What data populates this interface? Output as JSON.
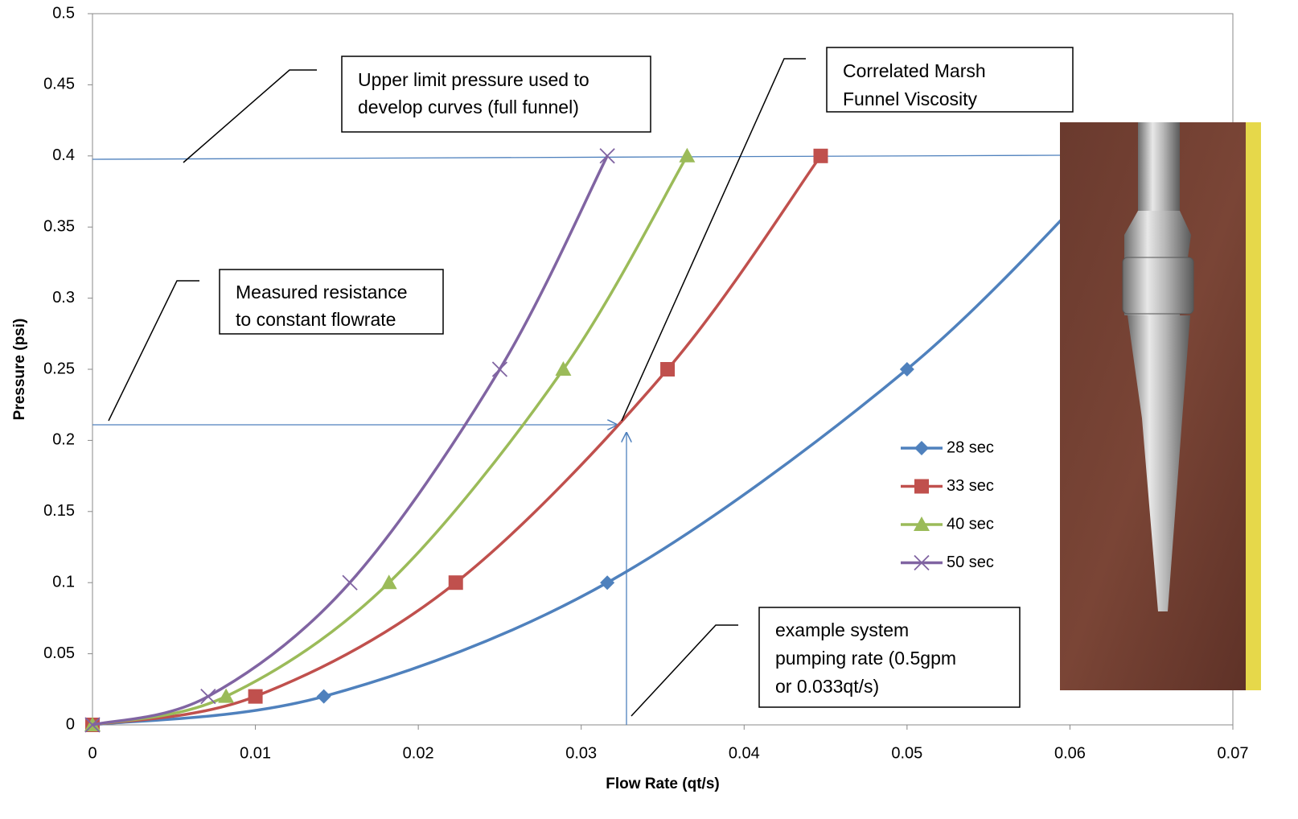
{
  "chart_data": {
    "type": "scatter",
    "xlabel": "Flow Rate (qt/s)",
    "ylabel": "Pressure (psi)",
    "xlim": [
      0,
      0.07
    ],
    "ylim": [
      0,
      0.5
    ],
    "xticks": [
      0,
      0.01,
      0.02,
      0.03,
      0.04,
      0.05,
      0.06,
      0.07
    ],
    "yticks": [
      0,
      0.05,
      0.1,
      0.15,
      0.2,
      0.25,
      0.3,
      0.35,
      0.4,
      0.45,
      0.5
    ],
    "series": [
      {
        "name": "28 sec",
        "color": "#4f81bd",
        "marker": "diamond",
        "x": [
          0,
          0.0142,
          0.0316,
          0.05,
          0.0632
        ],
        "values": [
          0,
          0.02,
          0.1,
          0.25,
          0.4
        ]
      },
      {
        "name": "33 sec",
        "color": "#c0504d",
        "marker": "square",
        "x": [
          0,
          0.01,
          0.0223,
          0.0353,
          0.0447
        ],
        "values": [
          0,
          0.02,
          0.1,
          0.25,
          0.4
        ]
      },
      {
        "name": "40 sec",
        "color": "#9bbb59",
        "marker": "triangle",
        "x": [
          0,
          0.0082,
          0.0182,
          0.0289,
          0.0365
        ],
        "values": [
          0,
          0.02,
          0.1,
          0.25,
          0.4
        ]
      },
      {
        "name": "50 sec",
        "color": "#8064a2",
        "marker": "cross",
        "x": [
          0,
          0.0071,
          0.0158,
          0.025,
          0.0316
        ],
        "values": [
          0,
          0.02,
          0.1,
          0.25,
          0.4
        ]
      }
    ],
    "annotations": [
      [
        "Upper limit pressure used to",
        "develop curves (full funnel)"
      ],
      [
        "Correlated Marsh",
        "Funnel Viscosity"
      ],
      [
        "Measured resistance",
        "to constant flowrate"
      ],
      [
        "example system",
        "pumping rate (0.5gpm",
        "or 0.033qt/s)"
      ]
    ]
  }
}
